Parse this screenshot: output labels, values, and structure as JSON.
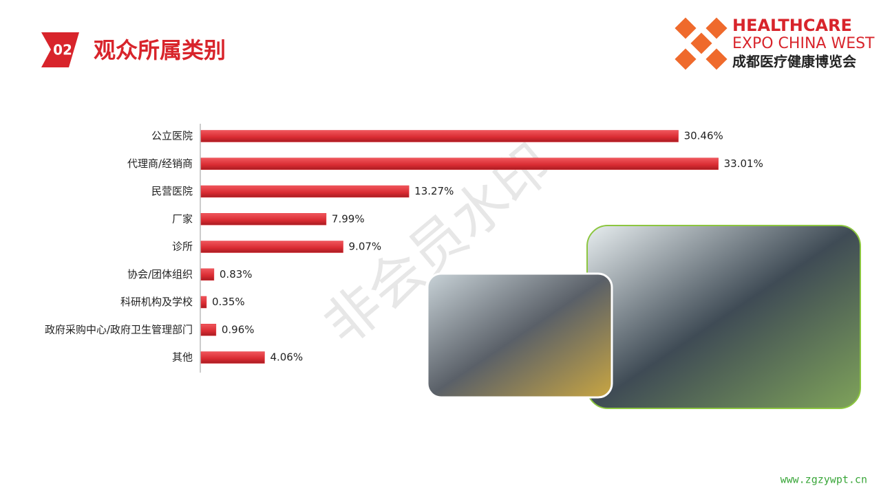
{
  "header": {
    "number": "02",
    "title": "观众所属类别"
  },
  "logo": {
    "line1": "HEALTHCARE",
    "line2": "EXPO CHINA WEST",
    "line3": "成都医疗健康博览会"
  },
  "watermark": "非会员水印",
  "footer_url": "www.zgzywpt.cn",
  "chart_data": {
    "type": "hbar",
    "color": "#e3343b",
    "categories": [
      "公立医院",
      "代理商/经销商",
      "民营医院",
      "厂家",
      "诊所",
      "协会/团体组织",
      "科研机构及学校",
      "政府采购中心/政府卫生管理部门",
      "其他"
    ],
    "values": [
      30.46,
      33.01,
      13.27,
      7.99,
      9.07,
      0.83,
      0.35,
      0.96,
      4.06
    ],
    "value_labels": [
      "30.46%",
      "33.01%",
      "13.27%",
      "7.99%",
      "9.07%",
      "0.83%",
      "0.35%",
      "0.96%",
      "4.06%"
    ]
  }
}
